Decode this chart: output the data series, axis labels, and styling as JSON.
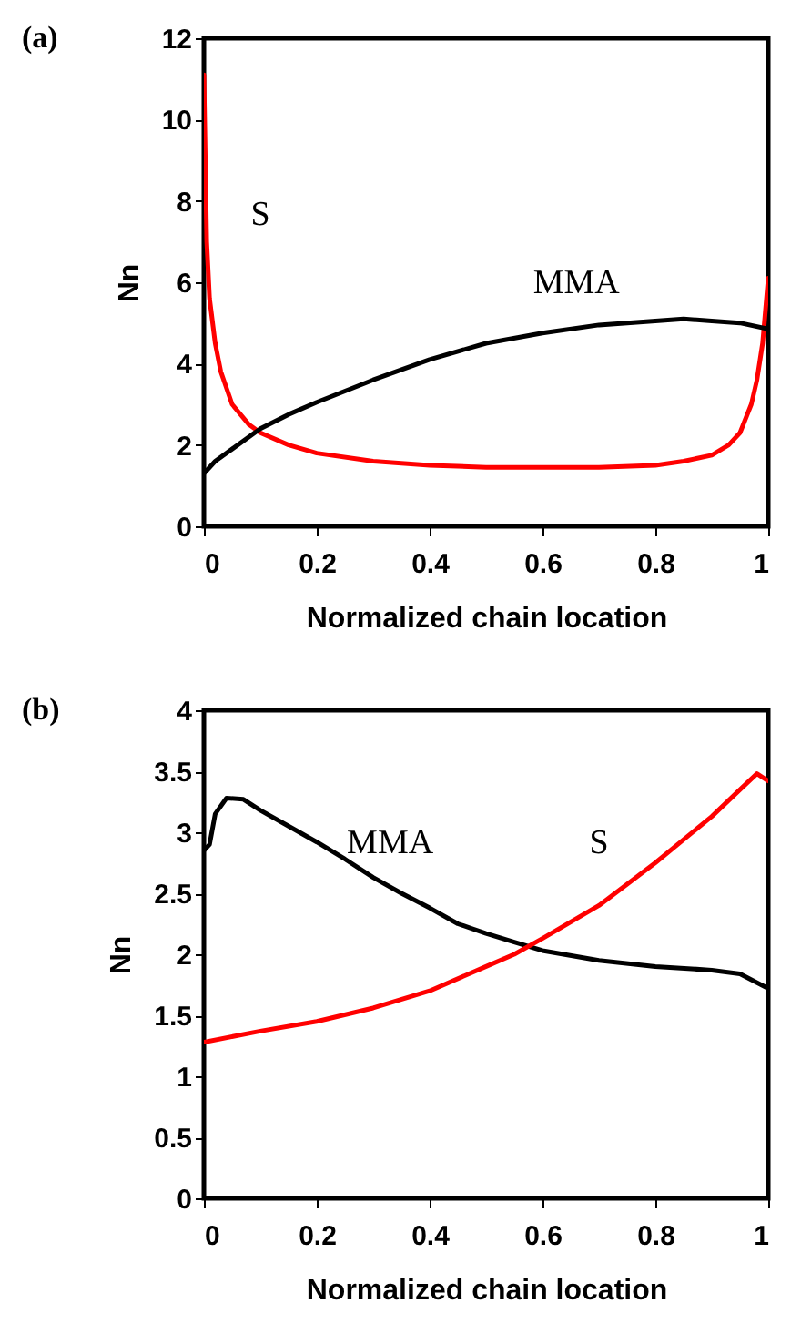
{
  "chart_data": [
    {
      "type": "line",
      "title": "(a)",
      "xlabel": "Normalized chain location",
      "ylabel": "Nn",
      "xlim": [
        0,
        1
      ],
      "ylim": [
        0,
        12
      ],
      "xticks": [
        0,
        0.2,
        0.4,
        0.6,
        0.8,
        1
      ],
      "yticks": [
        0,
        2,
        4,
        6,
        8,
        10,
        12
      ],
      "grid": false,
      "line_style": "solid",
      "series": [
        {
          "color": "#ff0000",
          "x": [
            0,
            0.005,
            0.01,
            0.02,
            0.03,
            0.05,
            0.08,
            0.1,
            0.15,
            0.2,
            0.3,
            0.4,
            0.5,
            0.6,
            0.7,
            0.8,
            0.85,
            0.9,
            0.93,
            0.95,
            0.97,
            0.98,
            0.99,
            1
          ],
          "values": [
            11.1,
            7,
            5.6,
            4.5,
            3.8,
            3,
            2.5,
            2.3,
            2,
            1.8,
            1.6,
            1.5,
            1.45,
            1.45,
            1.45,
            1.5,
            1.6,
            1.75,
            2,
            2.3,
            3,
            3.6,
            4.5,
            6.1
          ]
        },
        {
          "color": "#000000",
          "x": [
            0,
            0.02,
            0.05,
            0.1,
            0.15,
            0.2,
            0.3,
            0.4,
            0.5,
            0.6,
            0.7,
            0.8,
            0.85,
            0.9,
            0.95,
            1
          ],
          "values": [
            1.3,
            1.6,
            1.9,
            2.4,
            2.75,
            3.05,
            3.6,
            4.1,
            4.5,
            4.75,
            4.95,
            5.05,
            5.1,
            5.05,
            5,
            4.85
          ]
        }
      ],
      "annotations": [
        "S",
        "MMA"
      ]
    },
    {
      "type": "line",
      "title": "(b)",
      "xlabel": "Normalized chain location",
      "ylabel": "Nn",
      "xlim": [
        0,
        1
      ],
      "ylim": [
        0,
        4
      ],
      "xticks": [
        0,
        0.2,
        0.4,
        0.6,
        0.8,
        1
      ],
      "yticks": [
        0,
        0.5,
        1,
        1.5,
        2,
        2.5,
        3,
        3.5,
        4
      ],
      "grid": false,
      "line_style": "solid",
      "series": [
        {
          "color": "#000000",
          "x": [
            0,
            0.01,
            0.02,
            0.04,
            0.07,
            0.1,
            0.15,
            0.2,
            0.25,
            0.3,
            0.35,
            0.4,
            0.45,
            0.5,
            0.55,
            0.6,
            0.7,
            0.8,
            0.9,
            0.95,
            1
          ],
          "values": [
            2.85,
            2.9,
            3.15,
            3.28,
            3.27,
            3.18,
            3.05,
            2.92,
            2.78,
            2.63,
            2.5,
            2.38,
            2.25,
            2.17,
            2.1,
            2.03,
            1.95,
            1.9,
            1.87,
            1.84,
            1.72
          ]
        },
        {
          "color": "#ff0000",
          "x": [
            0,
            0.1,
            0.2,
            0.3,
            0.4,
            0.5,
            0.55,
            0.6,
            0.7,
            0.8,
            0.9,
            0.95,
            0.98,
            1
          ],
          "values": [
            1.28,
            1.37,
            1.45,
            1.56,
            1.7,
            1.9,
            2,
            2.13,
            2.4,
            2.75,
            3.13,
            3.35,
            3.48,
            3.42
          ]
        }
      ],
      "annotations": [
        "MMA",
        "S"
      ]
    }
  ]
}
